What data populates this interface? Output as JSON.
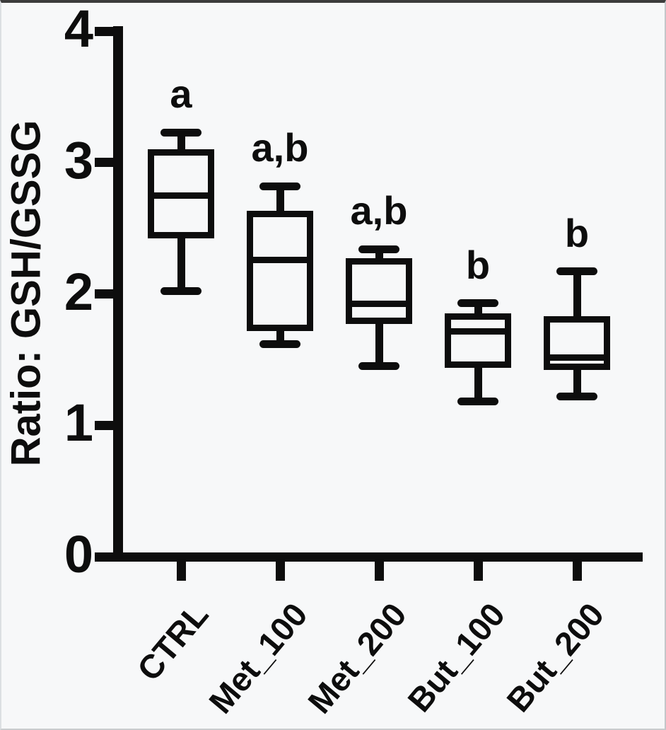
{
  "chart_data": {
    "type": "box",
    "title": "",
    "xlabel": "",
    "ylabel": "Ratio: GSH/GSSG",
    "ylim": [
      0,
      4
    ],
    "yticks": [
      "0",
      "1",
      "2",
      "3",
      "4"
    ],
    "grid": false,
    "legend": false,
    "categories": [
      "CTRL",
      "Met_100",
      "Met_200",
      "But_100",
      "But_200"
    ],
    "series": [
      {
        "category": "CTRL",
        "annotation": "a",
        "whisker_low": 2.02,
        "q1": 2.42,
        "median": 2.75,
        "q3": 3.1,
        "whisker_high": 3.23
      },
      {
        "category": "Met_100",
        "annotation": "a,b",
        "whisker_low": 1.62,
        "q1": 1.72,
        "median": 2.26,
        "q3": 2.63,
        "whisker_high": 2.82
      },
      {
        "category": "Met_200",
        "annotation": "a,b",
        "whisker_low": 1.45,
        "q1": 1.77,
        "median": 1.93,
        "q3": 2.27,
        "whisker_high": 2.34
      },
      {
        "category": "But_100",
        "annotation": "b",
        "whisker_low": 1.18,
        "q1": 1.44,
        "median": 1.72,
        "q3": 1.85,
        "whisker_high": 1.93
      },
      {
        "category": "But_200",
        "annotation": "b",
        "whisker_low": 1.22,
        "q1": 1.42,
        "median": 1.52,
        "q3": 1.83,
        "whisker_high": 2.17
      }
    ],
    "style": {
      "ink_color": "#0d0d0d",
      "background": "#f7f8f9",
      "box_fill": "transparent"
    }
  }
}
